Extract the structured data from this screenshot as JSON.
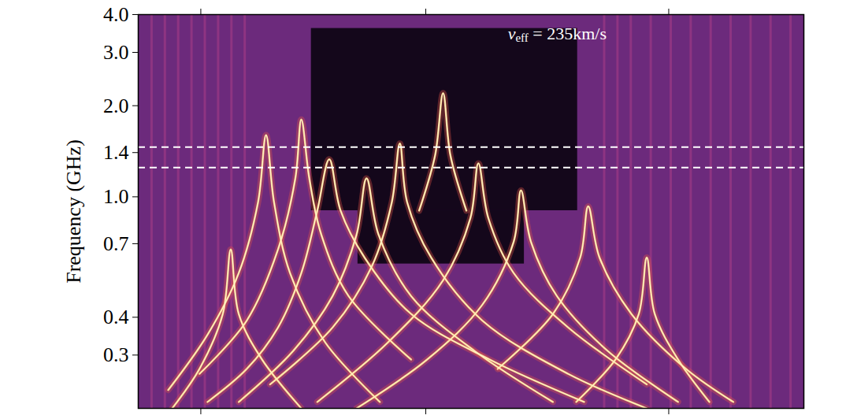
{
  "chart_data": {
    "type": "spectrogram",
    "y_label": "Frequency (GHz)",
    "annotation": {
      "text": "v",
      "subscript": "eff",
      "suffix": " = 235km/s",
      "x": 63,
      "y": 3.4
    },
    "log": "y",
    "tick_labels": "y",
    "xlim": [
      0,
      100
    ],
    "xticks": [
      9.4,
      43.2,
      79.7
    ],
    "ylim": [
      0.2,
      4.0
    ],
    "yticks": [
      0.3,
      0.4,
      0.7,
      {
        "value": 1.0,
        "label": "1.0"
      },
      1.4,
      {
        "value": 2.0,
        "label": "2.0"
      },
      {
        "value": 3.0,
        "label": "3.0"
      },
      {
        "value": 4.0,
        "label": "4.0"
      }
    ],
    "hlines": [
      1.25,
      1.46
    ],
    "color": "#fcd58a",
    "dark_regions": [
      [
        26,
        66,
        0.9,
        3.6
      ],
      [
        33,
        58,
        0.6,
        0.9
      ]
    ],
    "streaks": [
      2,
      4,
      6,
      8,
      10,
      12,
      14,
      16,
      70,
      72,
      74,
      77,
      80,
      83,
      86,
      89,
      92,
      95,
      98
    ],
    "caustics": [
      {
        "x": [
          10.4,
          16.3,
          21,
          24.5,
          26.9,
          28.7,
          30.4,
          34,
          41,
          52.8,
          67
        ],
        "f": [
          0.21,
          0.27,
          0.37,
          0.56,
          0.9,
          1.33,
          0.9,
          0.63,
          0.41,
          0.29,
          0.21
        ]
      },
      {
        "x": [
          15.1,
          23.3,
          29.2,
          32.8,
          34.3,
          36.1,
          41,
          50.5,
          62.3
        ],
        "f": [
          0.21,
          0.31,
          0.47,
          0.75,
          1.15,
          0.75,
          0.47,
          0.31,
          0.21
        ]
      },
      {
        "x": [
          19.8,
          29.2,
          35.1,
          38.1,
          39.3,
          40.4,
          44,
          51.7,
          64.6,
          76.4
        ],
        "f": [
          0.24,
          0.37,
          0.59,
          0.96,
          1.5,
          0.96,
          0.63,
          0.39,
          0.26,
          0.2
        ]
      },
      {
        "x": [
          26.9,
          37.5,
          45.8,
          49.9,
          51.1,
          52.6,
          56.4,
          64.6,
          76.4
        ],
        "f": [
          0.21,
          0.33,
          0.53,
          0.85,
          1.29,
          0.85,
          0.56,
          0.37,
          0.24
        ]
      },
      {
        "x": [
          32.8,
          43.4,
          51.7,
          56.4,
          57.5,
          59,
          62.9,
          70.5,
          81.1
        ],
        "f": [
          0.2,
          0.29,
          0.44,
          0.71,
          1.05,
          0.71,
          0.47,
          0.31,
          0.21
        ]
      },
      {
        "x": [
          54,
          62.3,
          66.4,
          67.6,
          69.3,
          74.1,
          82.3,
          89.4
        ],
        "f": [
          0.27,
          0.41,
          0.63,
          0.93,
          0.63,
          0.41,
          0.27,
          0.21
        ]
      },
      {
        "x": [
          9.2,
          16.3,
          21,
          23.6,
          24.5,
          25.7,
          27.5,
          31.6,
          41
        ],
        "f": [
          0.26,
          0.39,
          0.67,
          1.15,
          1.8,
          1.15,
          0.75,
          0.47,
          0.29
        ]
      },
      {
        "x": [
          4.5,
          10.4,
          15.1,
          18,
          19.2,
          20.4,
          22.8,
          28.1,
          36.3
        ],
        "f": [
          0.23,
          0.35,
          0.56,
          0.96,
          1.6,
          0.96,
          0.56,
          0.33,
          0.21
        ]
      },
      {
        "x": [
          5.1,
          9.2,
          12.7,
          13.9,
          15.1,
          18.6,
          24.5
        ],
        "f": [
          0.2,
          0.27,
          0.41,
          0.67,
          0.41,
          0.29,
          0.2
        ]
      },
      {
        "x": [
          65.8,
          71.7,
          75.2,
          76.4,
          77.6,
          81.1,
          85.8
        ],
        "f": [
          0.21,
          0.29,
          0.41,
          0.63,
          0.41,
          0.29,
          0.21
        ]
      },
      {
        "x": [
          42.2,
          44.6,
          45.8,
          46.9,
          49.3
        ],
        "f": [
          0.9,
          1.37,
          2.2,
          1.37,
          0.9
        ]
      }
    ]
  }
}
